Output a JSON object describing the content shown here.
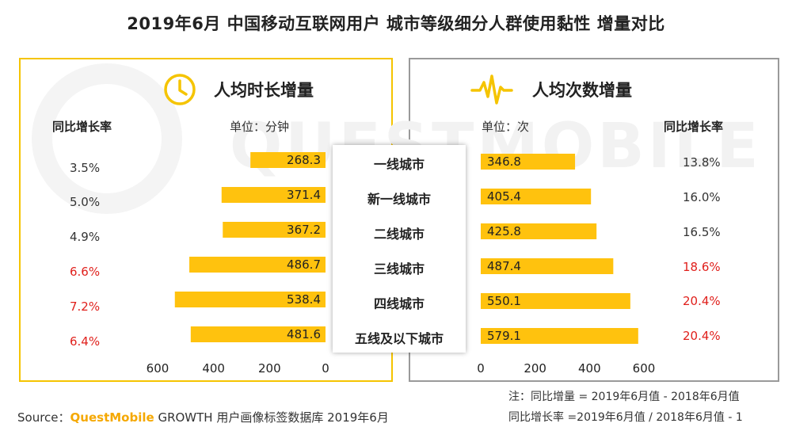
{
  "title": "2019年6月 中国移动互联网用户 城市等级细分人群使用黏性 增量对比",
  "watermark": "QUESTMOBILE",
  "left_panel": {
    "title": "人均时长增量",
    "icon": "clock-icon",
    "unit": "单位：分钟",
    "yoy_header": "同比增长率"
  },
  "right_panel": {
    "title": "人均次数增量",
    "icon": "pulse-icon",
    "unit": "单位：次",
    "yoy_header": "同比增长率"
  },
  "colors": {
    "bar": "#FFC20E",
    "accent": "#F5C400",
    "red": "#E0201C"
  },
  "chart_data": [
    {
      "type": "bar",
      "orientation": "horizontal-reversed",
      "title": "人均时长增量",
      "unit": "单位：分钟",
      "categories": [
        "一线城市",
        "新一线城市",
        "二线城市",
        "三线城市",
        "四线城市",
        "五线及以下城市"
      ],
      "values": [
        268.3,
        371.4,
        367.2,
        486.7,
        538.4,
        481.6
      ],
      "value_labels": [
        "268.3",
        "371.4",
        "367.2",
        "486.7",
        "538.4",
        "481.6"
      ],
      "yoy": [
        "3.5%",
        "5.0%",
        "4.9%",
        "6.6%",
        "7.2%",
        "6.4%"
      ],
      "yoy_highlight": [
        false,
        false,
        false,
        true,
        true,
        true
      ],
      "xlim": [
        0,
        600
      ],
      "ticks": [
        "600",
        "400",
        "200",
        "0"
      ]
    },
    {
      "type": "bar",
      "orientation": "horizontal",
      "title": "人均次数增量",
      "unit": "单位：次",
      "categories": [
        "一线城市",
        "新一线城市",
        "二线城市",
        "三线城市",
        "四线城市",
        "五线及以下城市"
      ],
      "values": [
        346.8,
        405.4,
        425.8,
        487.4,
        550.1,
        579.1
      ],
      "value_labels": [
        "346.8",
        "405.4",
        "425.8",
        "487.4",
        "550.1",
        "579.1"
      ],
      "yoy": [
        "13.8%",
        "16.0%",
        "16.5%",
        "18.6%",
        "20.4%",
        "20.4%"
      ],
      "yoy_highlight": [
        false,
        false,
        false,
        true,
        true,
        true
      ],
      "xlim": [
        0,
        600
      ],
      "ticks": [
        "0",
        "200",
        "400",
        "600"
      ]
    }
  ],
  "footnote": {
    "line1": "注：同比增量 = 2019年6月值 - 2018年6月值",
    "line2": "同比增长率 =2019年6月值 / 2018年6月值 - 1"
  },
  "source": {
    "label": "Source：",
    "brand": "QuestMobile",
    "rest": " GROWTH 用户画像标签数据库 2019年6月"
  }
}
